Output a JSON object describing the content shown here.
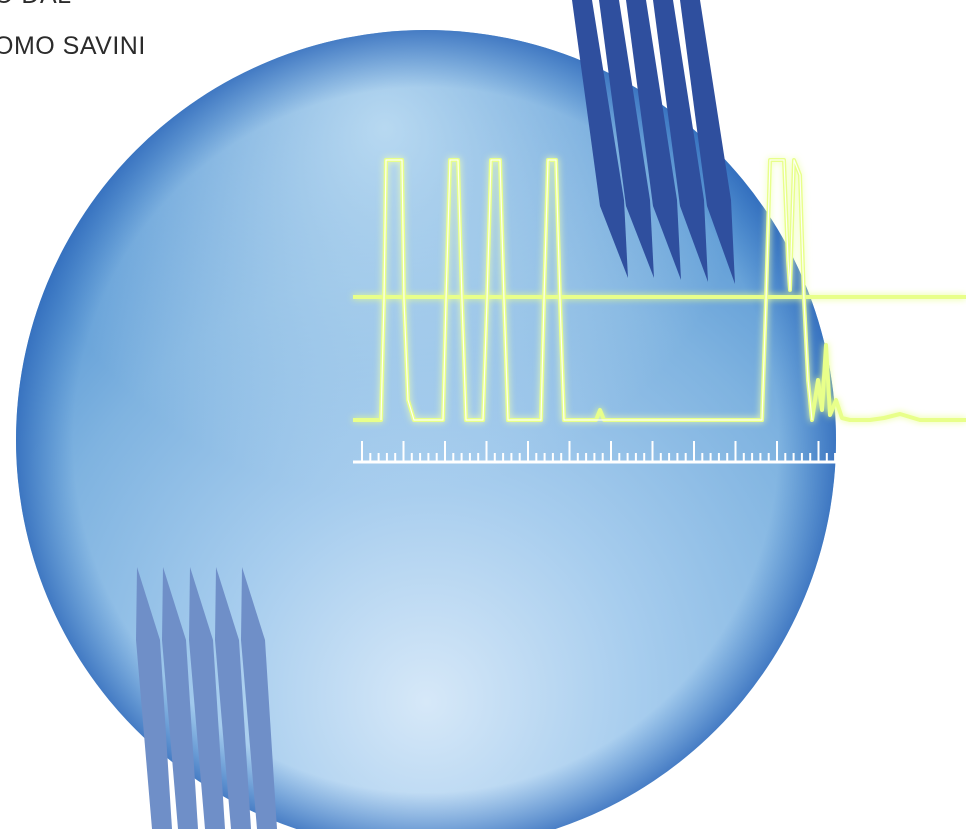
{
  "caption": {
    "line1": "O DAL",
    "line2": "OMO SAVINI"
  },
  "colors": {
    "sphere_light": "#d4e7f7",
    "sphere_mid": "#7fb4e0",
    "sphere_dark": "#2f6fc0",
    "stripes_top": "#2f4f9e",
    "stripes_bottom": "#6f8fc8",
    "signal": "#eaff8a",
    "signal_glow": "#c8f21a",
    "ruler": "#ffffff"
  },
  "icons": {
    "sphere": "sphere-graphic",
    "stripes": "chevron-stripes-icon",
    "waveform": "chromatogram-trace"
  }
}
